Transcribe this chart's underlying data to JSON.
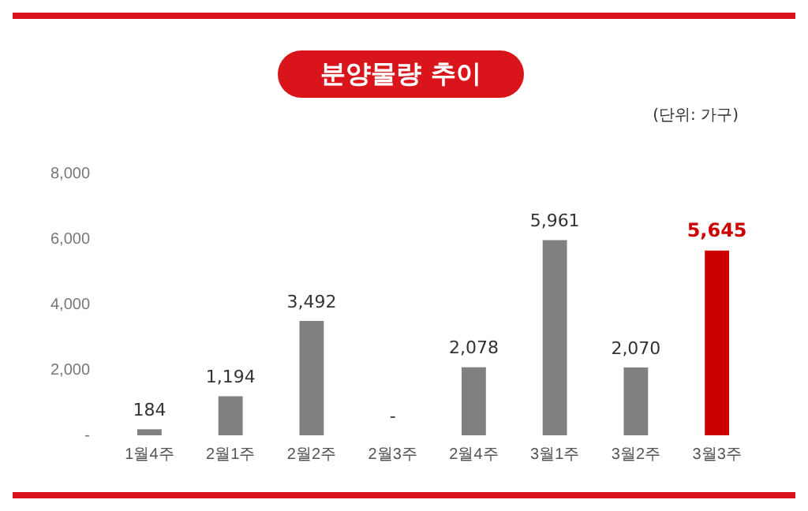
{
  "chart_data": {
    "type": "bar",
    "title": "분양물량 추이",
    "annotations": [
      "(단위: 가구)"
    ],
    "categories": [
      "1월4주",
      "2월1주",
      "2월2주",
      "2월3주",
      "2월4주",
      "3월1주",
      "3월2주",
      "3월3주"
    ],
    "values": [
      184,
      1194,
      3492,
      0,
      2078,
      5961,
      2070,
      5645
    ],
    "colors": [
      "#808080",
      "#808080",
      "#808080",
      "#808080",
      "#808080",
      "#808080",
      "#808080",
      "#cc0000"
    ],
    "value_labels": [
      "184",
      "1,194",
      "3,492",
      "-",
      "2,078",
      "5,961",
      "2,070",
      "5,645"
    ],
    "ylim": [
      0,
      8000
    ],
    "yticks": [
      {
        "value": 0,
        "label": "-"
      },
      {
        "value": 2000,
        "label": "2,000"
      },
      {
        "value": 4000,
        "label": "4,000"
      },
      {
        "value": 6000,
        "label": "6,000"
      },
      {
        "value": 8000,
        "label": "8,000"
      }
    ],
    "grid": false,
    "legend": false
  }
}
